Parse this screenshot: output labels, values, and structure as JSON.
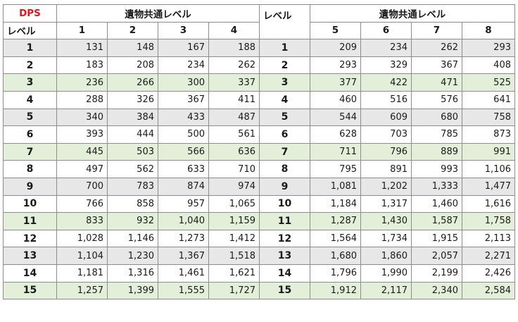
{
  "header": {
    "dps_label": "DPS",
    "group_left": "遺物共通レベル",
    "group_right": "遺物共通レベル",
    "level_label": "レベル",
    "level_label_right": "レベル",
    "cols_left": [
      "1",
      "2",
      "3",
      "4"
    ],
    "cols_right": [
      "5",
      "6",
      "7",
      "8"
    ]
  },
  "colors": {
    "gray_row": "#e7e7e7",
    "green_row": "#e3efd9",
    "dps_red": "#e8141a"
  },
  "rows": [
    {
      "level": "1",
      "shade": "gray",
      "left": [
        "131",
        "148",
        "167",
        "188"
      ],
      "right": [
        "209",
        "234",
        "262",
        "293"
      ]
    },
    {
      "level": "2",
      "shade": "white",
      "left": [
        "183",
        "208",
        "234",
        "262"
      ],
      "right": [
        "293",
        "329",
        "367",
        "408"
      ]
    },
    {
      "level": "3",
      "shade": "green",
      "left": [
        "236",
        "266",
        "300",
        "337"
      ],
      "right": [
        "377",
        "422",
        "471",
        "525"
      ]
    },
    {
      "level": "4",
      "shade": "white",
      "left": [
        "288",
        "326",
        "367",
        "411"
      ],
      "right": [
        "460",
        "516",
        "576",
        "641"
      ]
    },
    {
      "level": "5",
      "shade": "gray",
      "left": [
        "340",
        "384",
        "433",
        "487"
      ],
      "right": [
        "544",
        "609",
        "680",
        "758"
      ]
    },
    {
      "level": "6",
      "shade": "white",
      "left": [
        "393",
        "444",
        "500",
        "561"
      ],
      "right": [
        "628",
        "703",
        "785",
        "873"
      ]
    },
    {
      "level": "7",
      "shade": "green",
      "left": [
        "445",
        "503",
        "566",
        "636"
      ],
      "right": [
        "711",
        "796",
        "889",
        "991"
      ]
    },
    {
      "level": "8",
      "shade": "white",
      "left": [
        "497",
        "562",
        "633",
        "710"
      ],
      "right": [
        "795",
        "891",
        "993",
        "1,106"
      ]
    },
    {
      "level": "9",
      "shade": "gray",
      "left": [
        "700",
        "783",
        "874",
        "974"
      ],
      "right": [
        "1,081",
        "1,202",
        "1,333",
        "1,477"
      ]
    },
    {
      "level": "10",
      "shade": "white",
      "left": [
        "766",
        "858",
        "957",
        "1,065"
      ],
      "right": [
        "1,184",
        "1,317",
        "1,460",
        "1,616"
      ]
    },
    {
      "level": "11",
      "shade": "green",
      "left": [
        "833",
        "932",
        "1,040",
        "1,159"
      ],
      "right": [
        "1,287",
        "1,430",
        "1,587",
        "1,758"
      ]
    },
    {
      "level": "12",
      "shade": "white",
      "left": [
        "1,028",
        "1,146",
        "1,273",
        "1,412"
      ],
      "right": [
        "1,564",
        "1,734",
        "1,915",
        "2,113"
      ]
    },
    {
      "level": "13",
      "shade": "gray",
      "left": [
        "1,104",
        "1,230",
        "1,367",
        "1,518"
      ],
      "right": [
        "1,680",
        "1,860",
        "2,057",
        "2,271"
      ]
    },
    {
      "level": "14",
      "shade": "white",
      "left": [
        "1,181",
        "1,316",
        "1,461",
        "1,621"
      ],
      "right": [
        "1,796",
        "1,990",
        "2,199",
        "2,426"
      ]
    },
    {
      "level": "15",
      "shade": "green",
      "left": [
        "1,257",
        "1,399",
        "1,555",
        "1,727"
      ],
      "right": [
        "1,912",
        "2,117",
        "2,340",
        "2,584"
      ]
    }
  ]
}
